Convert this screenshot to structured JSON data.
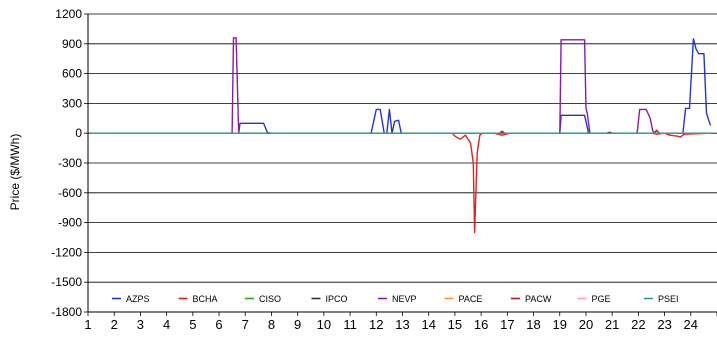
{
  "chart_data": {
    "type": "line",
    "title": "",
    "xlabel": "",
    "ylabel": "Price ($/MWh)",
    "xlim": [
      1,
      25
    ],
    "ylim": [
      -1800,
      1200
    ],
    "x_ticks": [
      1,
      2,
      3,
      4,
      5,
      6,
      7,
      8,
      9,
      10,
      11,
      12,
      13,
      14,
      15,
      16,
      17,
      18,
      19,
      20,
      21,
      22,
      23,
      24
    ],
    "y_ticks": [
      -1800,
      -1500,
      -1200,
      -900,
      -600,
      -300,
      0,
      300,
      600,
      900,
      1200
    ],
    "grid": "horizontal",
    "legend_position": "bottom-inside",
    "series": [
      {
        "name": "AZPS",
        "color": "#2233dd",
        "points": [
          [
            1,
            0
          ],
          [
            6.75,
            0
          ],
          [
            6.8,
            100
          ],
          [
            7.7,
            100
          ],
          [
            7.85,
            5
          ],
          [
            8,
            0
          ],
          [
            11.8,
            0
          ],
          [
            12,
            240
          ],
          [
            12.15,
            240
          ],
          [
            12.3,
            0
          ],
          [
            12.4,
            0
          ],
          [
            12.5,
            240
          ],
          [
            12.6,
            0
          ],
          [
            12.7,
            120
          ],
          [
            12.85,
            130
          ],
          [
            12.95,
            0
          ],
          [
            19,
            0
          ],
          [
            19.05,
            180
          ],
          [
            19.95,
            180
          ],
          [
            20.1,
            0
          ],
          [
            23.7,
            0
          ],
          [
            23.8,
            250
          ],
          [
            23.95,
            250
          ],
          [
            24.1,
            950
          ],
          [
            24.2,
            850
          ],
          [
            24.3,
            800
          ],
          [
            24.5,
            800
          ],
          [
            24.6,
            200
          ],
          [
            24.75,
            80
          ]
        ]
      },
      {
        "name": "BCHA",
        "color": "#dd2222",
        "points": [
          [
            1,
            0
          ],
          [
            14.9,
            0
          ],
          [
            15,
            -30
          ],
          [
            15.2,
            -60
          ],
          [
            15.4,
            -20
          ],
          [
            15.6,
            -100
          ],
          [
            15.7,
            -300
          ],
          [
            15.75,
            -1000
          ],
          [
            15.85,
            -200
          ],
          [
            15.95,
            -20
          ],
          [
            16.05,
            0
          ],
          [
            16.3,
            0
          ],
          [
            16.5,
            0
          ],
          [
            16.8,
            -20
          ],
          [
            17.1,
            0
          ],
          [
            22.5,
            0
          ],
          [
            22.7,
            -10
          ],
          [
            23,
            0
          ],
          [
            23.2,
            -20
          ],
          [
            23.5,
            -30
          ],
          [
            23.6,
            -40
          ],
          [
            23.75,
            -10
          ],
          [
            24.75,
            0
          ]
        ]
      },
      {
        "name": "CISO",
        "color": "#22aa22",
        "points": [
          [
            1,
            0
          ],
          [
            24.75,
            0
          ]
        ]
      },
      {
        "name": "IPCO",
        "color": "#333333",
        "points": [
          [
            1,
            0
          ],
          [
            24.75,
            0
          ]
        ]
      },
      {
        "name": "NEVP",
        "color": "#8a1aa8",
        "points": [
          [
            1,
            0
          ],
          [
            6.5,
            0
          ],
          [
            6.55,
            960
          ],
          [
            6.65,
            960
          ],
          [
            6.75,
            0
          ],
          [
            19,
            0
          ],
          [
            19.05,
            940
          ],
          [
            19.95,
            940
          ],
          [
            20,
            250
          ],
          [
            20.05,
            200
          ],
          [
            20.15,
            0
          ],
          [
            21.95,
            0
          ],
          [
            22.05,
            240
          ],
          [
            22.3,
            240
          ],
          [
            22.45,
            150
          ],
          [
            22.55,
            20
          ],
          [
            22.65,
            0
          ],
          [
            24.75,
            0
          ]
        ]
      },
      {
        "name": "PACE",
        "color": "#ff9922",
        "points": [
          [
            1,
            0
          ],
          [
            24.75,
            0
          ]
        ]
      },
      {
        "name": "PACW",
        "color": "#b01a2a",
        "points": [
          [
            1,
            0
          ],
          [
            16.7,
            0
          ],
          [
            16.8,
            20
          ],
          [
            16.9,
            0
          ],
          [
            20.8,
            0
          ],
          [
            20.9,
            10
          ],
          [
            21,
            0
          ],
          [
            22.6,
            0
          ],
          [
            22.7,
            30
          ],
          [
            22.8,
            0
          ],
          [
            24.75,
            0
          ]
        ]
      },
      {
        "name": "PGE",
        "color": "#f4a0b8",
        "points": [
          [
            1,
            0
          ],
          [
            24.75,
            0
          ]
        ]
      },
      {
        "name": "PSEI",
        "color": "#2a9a8a",
        "points": [
          [
            1,
            0
          ],
          [
            24.75,
            0
          ]
        ]
      }
    ]
  }
}
